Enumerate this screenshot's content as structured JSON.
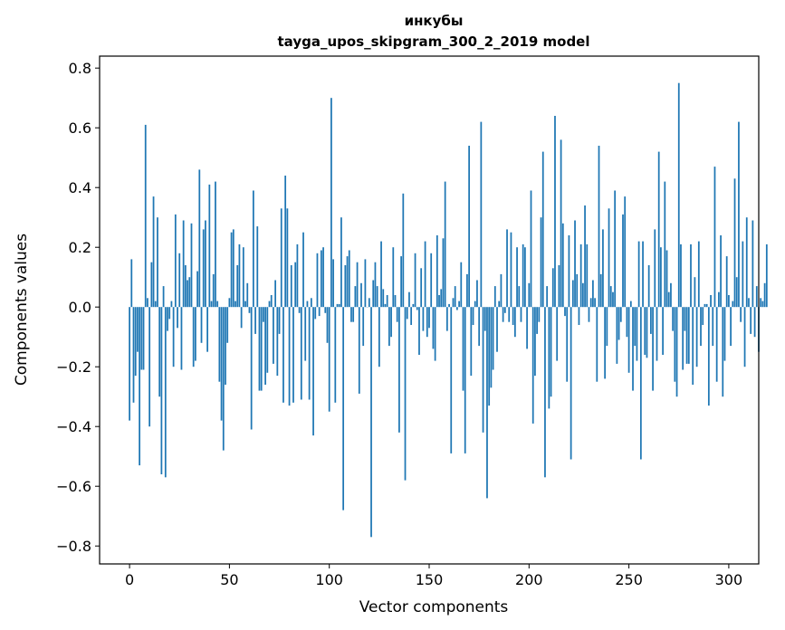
{
  "chart_data": {
    "type": "bar",
    "title": "инкубы",
    "subtitle": "tayga_upos_skipgram_300_2_2019 model",
    "xlabel": "Vector components",
    "ylabel": "Components values",
    "xlim": [
      -15,
      315
    ],
    "ylim": [
      -0.86,
      0.84
    ],
    "xticks": [
      0,
      50,
      100,
      150,
      200,
      250,
      300
    ],
    "xtick_labels": [
      "0",
      "50",
      "100",
      "150",
      "200",
      "250",
      "300"
    ],
    "yticks": [
      -0.8,
      -0.6,
      -0.4,
      -0.2,
      0.0,
      0.2,
      0.4,
      0.6,
      0.8
    ],
    "ytick_labels": [
      "−0.8",
      "−0.6",
      "−0.4",
      "−0.2",
      "0.0",
      "0.2",
      "0.4",
      "0.6",
      "0.8"
    ],
    "bar_color": "#1f77b4",
    "grid": false,
    "values": [
      -0.38,
      0.16,
      -0.32,
      -0.23,
      -0.15,
      -0.53,
      -0.21,
      -0.21,
      0.61,
      0.03,
      -0.4,
      0.15,
      0.37,
      0.02,
      0.3,
      -0.3,
      -0.56,
      0.07,
      -0.57,
      -0.08,
      -0.04,
      0.02,
      -0.2,
      0.31,
      -0.07,
      0.18,
      -0.21,
      0.29,
      0.14,
      0.09,
      0.1,
      0.28,
      -0.2,
      -0.18,
      0.12,
      0.46,
      -0.12,
      0.26,
      0.29,
      -0.15,
      0.41,
      0.02,
      0.11,
      0.42,
      0.02,
      -0.25,
      -0.38,
      -0.48,
      -0.26,
      -0.12,
      0.03,
      0.25,
      0.26,
      0.02,
      0.14,
      0.21,
      -0.07,
      0.2,
      0.02,
      0.08,
      -0.02,
      -0.41,
      0.39,
      -0.09,
      0.27,
      -0.28,
      -0.28,
      -0.05,
      -0.26,
      -0.22,
      0.02,
      0.04,
      -0.19,
      0.09,
      -0.23,
      -0.09,
      0.33,
      -0.32,
      0.44,
      0.33,
      -0.33,
      0.14,
      -0.32,
      0.15,
      0.21,
      -0.02,
      -0.31,
      0.25,
      -0.18,
      0.02,
      -0.31,
      0.03,
      -0.43,
      -0.04,
      0.18,
      -0.03,
      0.19,
      0.2,
      -0.02,
      -0.12,
      -0.35,
      0.7,
      0.16,
      -0.32,
      0.01,
      0.01,
      0.3,
      -0.68,
      0.14,
      0.17,
      0.19,
      -0.05,
      -0.05,
      0.07,
      0.15,
      -0.29,
      0.08,
      -0.13,
      0.16,
      0.0,
      0.03,
      -0.77,
      0.09,
      0.15,
      0.07,
      -0.2,
      0.22,
      0.06,
      0.01,
      0.04,
      -0.13,
      -0.1,
      0.2,
      0.04,
      -0.05,
      -0.42,
      0.17,
      0.38,
      -0.58,
      -0.04,
      0.05,
      -0.06,
      0.01,
      0.18,
      -0.01,
      -0.16,
      0.13,
      -0.08,
      0.22,
      -0.1,
      -0.07,
      0.18,
      -0.14,
      -0.18,
      0.24,
      0.04,
      0.06,
      0.23,
      0.42,
      -0.08,
      0.01,
      -0.49,
      0.03,
      0.07,
      -0.01,
      0.02,
      0.15,
      -0.28,
      -0.49,
      0.11,
      0.54,
      -0.23,
      -0.06,
      0.02,
      0.09,
      -0.13,
      0.62,
      -0.42,
      -0.08,
      -0.64,
      -0.33,
      -0.27,
      -0.21,
      0.07,
      -0.15,
      0.02,
      0.11,
      -0.05,
      -0.02,
      0.26,
      -0.05,
      0.25,
      -0.06,
      -0.1,
      0.2,
      0.07,
      -0.05,
      0.21,
      0.2,
      -0.14,
      0.08,
      0.39,
      -0.39,
      -0.23,
      -0.09,
      -0.05,
      0.3,
      0.52,
      -0.57,
      0.07,
      -0.34,
      -0.3,
      0.13,
      0.64,
      -0.18,
      0.14,
      0.56,
      0.28,
      -0.03,
      -0.25,
      0.24,
      -0.51,
      0.09,
      0.29,
      0.11,
      -0.06,
      0.21,
      0.08,
      0.34,
      0.21,
      -0.05,
      0.03,
      0.09,
      0.03,
      -0.25,
      0.54,
      0.11,
      0.26,
      -0.24,
      -0.13,
      0.33,
      0.07,
      0.05,
      0.39,
      -0.19,
      -0.11,
      -0.05,
      0.31,
      0.37,
      -0.1,
      -0.22,
      0.02,
      -0.28,
      -0.13,
      -0.18,
      0.22,
      -0.51,
      0.22,
      -0.16,
      -0.17,
      0.14,
      -0.09,
      -0.28,
      0.26,
      -0.18,
      0.52,
      0.2,
      -0.16,
      0.42,
      0.19,
      0.05,
      0.08,
      -0.08,
      -0.25,
      -0.3,
      0.75,
      0.21,
      -0.21,
      -0.08,
      -0.19,
      -0.19,
      0.21,
      -0.26,
      0.1,
      -0.2,
      0.22,
      -0.13,
      -0.06,
      0.01,
      0.01,
      -0.33,
      0.04,
      -0.13,
      0.47,
      -0.25,
      0.05,
      0.24,
      -0.3,
      -0.18,
      0.17,
      0.04,
      -0.13,
      0.02,
      0.43,
      0.1,
      0.62,
      -0.05,
      0.22,
      -0.2,
      0.3,
      0.03,
      -0.09,
      0.29,
      -0.1,
      0.07,
      -0.15,
      0.03,
      0.02,
      0.08,
      0.21
    ]
  }
}
